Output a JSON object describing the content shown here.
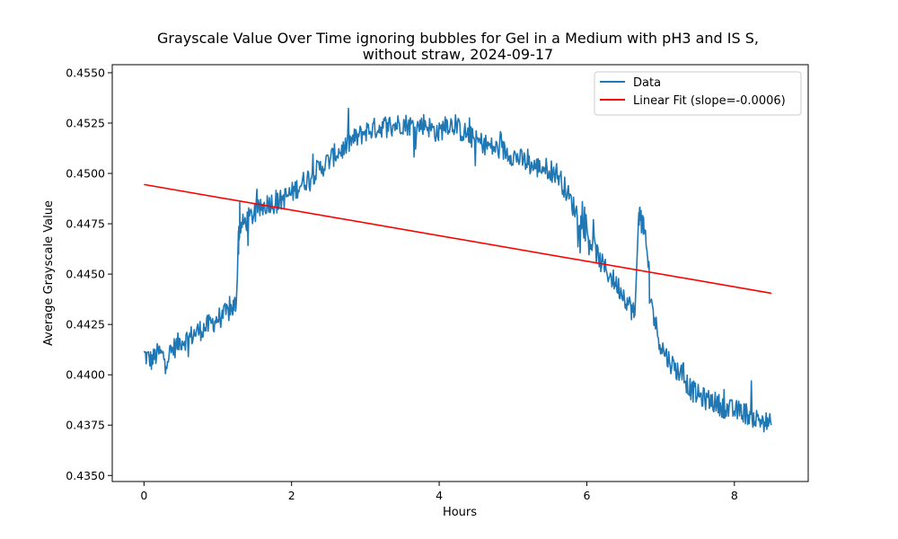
{
  "chart_data": {
    "type": "line",
    "title_lines": [
      "Grayscale Value Over Time ignoring bubbles for Gel in a Medium with pH3 and IS S,",
      "without straw, 2024-09-17"
    ],
    "xlabel": "Hours",
    "ylabel": "Average Grayscale Value",
    "xlim": [
      -0.43,
      9.0
    ],
    "ylim": [
      0.4347,
      0.4554
    ],
    "xticks": [
      0,
      2,
      4,
      6,
      8
    ],
    "xtick_labels": [
      "0",
      "2",
      "4",
      "6",
      "8"
    ],
    "yticks": [
      0.435,
      0.4375,
      0.44,
      0.4425,
      0.445,
      0.4475,
      0.45,
      0.4525,
      0.455
    ],
    "ytick_labels": [
      "0.4350",
      "0.4375",
      "0.4400",
      "0.4425",
      "0.4450",
      "0.4475",
      "0.4500",
      "0.4525",
      "0.4550"
    ],
    "grid": false,
    "legend_position": "top-right",
    "series": [
      {
        "name": "Data",
        "color": "#1f77b4",
        "x": [
          0,
          0.1,
          0.2,
          0.3,
          0.4,
          0.5,
          0.6,
          0.7,
          0.8,
          0.9,
          1.0,
          1.1,
          1.2,
          1.25,
          1.28,
          1.3,
          1.4,
          1.5,
          1.6,
          1.7,
          1.8,
          1.9,
          2.0,
          2.1,
          2.2,
          2.3,
          2.4,
          2.5,
          2.6,
          2.7,
          2.8,
          2.9,
          3.0,
          3.1,
          3.2,
          3.3,
          3.4,
          3.5,
          3.6,
          3.7,
          3.8,
          3.9,
          4.0,
          4.1,
          4.2,
          4.3,
          4.4,
          4.5,
          4.6,
          4.7,
          4.8,
          4.9,
          5.0,
          5.1,
          5.2,
          5.3,
          5.4,
          5.5,
          5.6,
          5.7,
          5.8,
          5.9,
          6.0,
          6.1,
          6.2,
          6.3,
          6.4,
          6.5,
          6.6,
          6.65,
          6.7,
          6.75,
          6.8,
          6.85,
          6.9,
          7.0,
          7.1,
          7.2,
          7.3,
          7.4,
          7.5,
          7.6,
          7.7,
          7.8,
          7.9,
          8.0,
          8.1,
          8.2,
          8.3,
          8.4,
          8.5
        ],
        "y": [
          0.441,
          0.4407,
          0.4411,
          0.4408,
          0.4413,
          0.4417,
          0.4418,
          0.4421,
          0.4423,
          0.4425,
          0.4428,
          0.443,
          0.4433,
          0.4436,
          0.447,
          0.4473,
          0.4477,
          0.448,
          0.4483,
          0.4486,
          0.4485,
          0.4488,
          0.449,
          0.4494,
          0.4497,
          0.45,
          0.4503,
          0.4506,
          0.451,
          0.4512,
          0.4516,
          0.4518,
          0.4521,
          0.4522,
          0.4523,
          0.4524,
          0.4524,
          0.4525,
          0.4524,
          0.4523,
          0.4525,
          0.4522,
          0.452,
          0.4525,
          0.4524,
          0.4521,
          0.4519,
          0.4516,
          0.4515,
          0.4513,
          0.4512,
          0.4511,
          0.4509,
          0.4507,
          0.4505,
          0.4503,
          0.4503,
          0.4502,
          0.45,
          0.4493,
          0.4485,
          0.4478,
          0.447,
          0.4463,
          0.4455,
          0.445,
          0.4445,
          0.444,
          0.4433,
          0.443,
          0.448,
          0.4478,
          0.4465,
          0.445,
          0.443,
          0.4415,
          0.4408,
          0.4403,
          0.44,
          0.4393,
          0.439,
          0.4388,
          0.4387,
          0.4385,
          0.4383,
          0.4382,
          0.4382,
          0.438,
          0.4378,
          0.4377,
          0.4375
        ]
      },
      {
        "name": "Linear Fit (slope=-0.0006)",
        "color": "#ff0000",
        "x": [
          0,
          8.5
        ],
        "y": [
          0.44945,
          0.44405
        ]
      }
    ]
  }
}
